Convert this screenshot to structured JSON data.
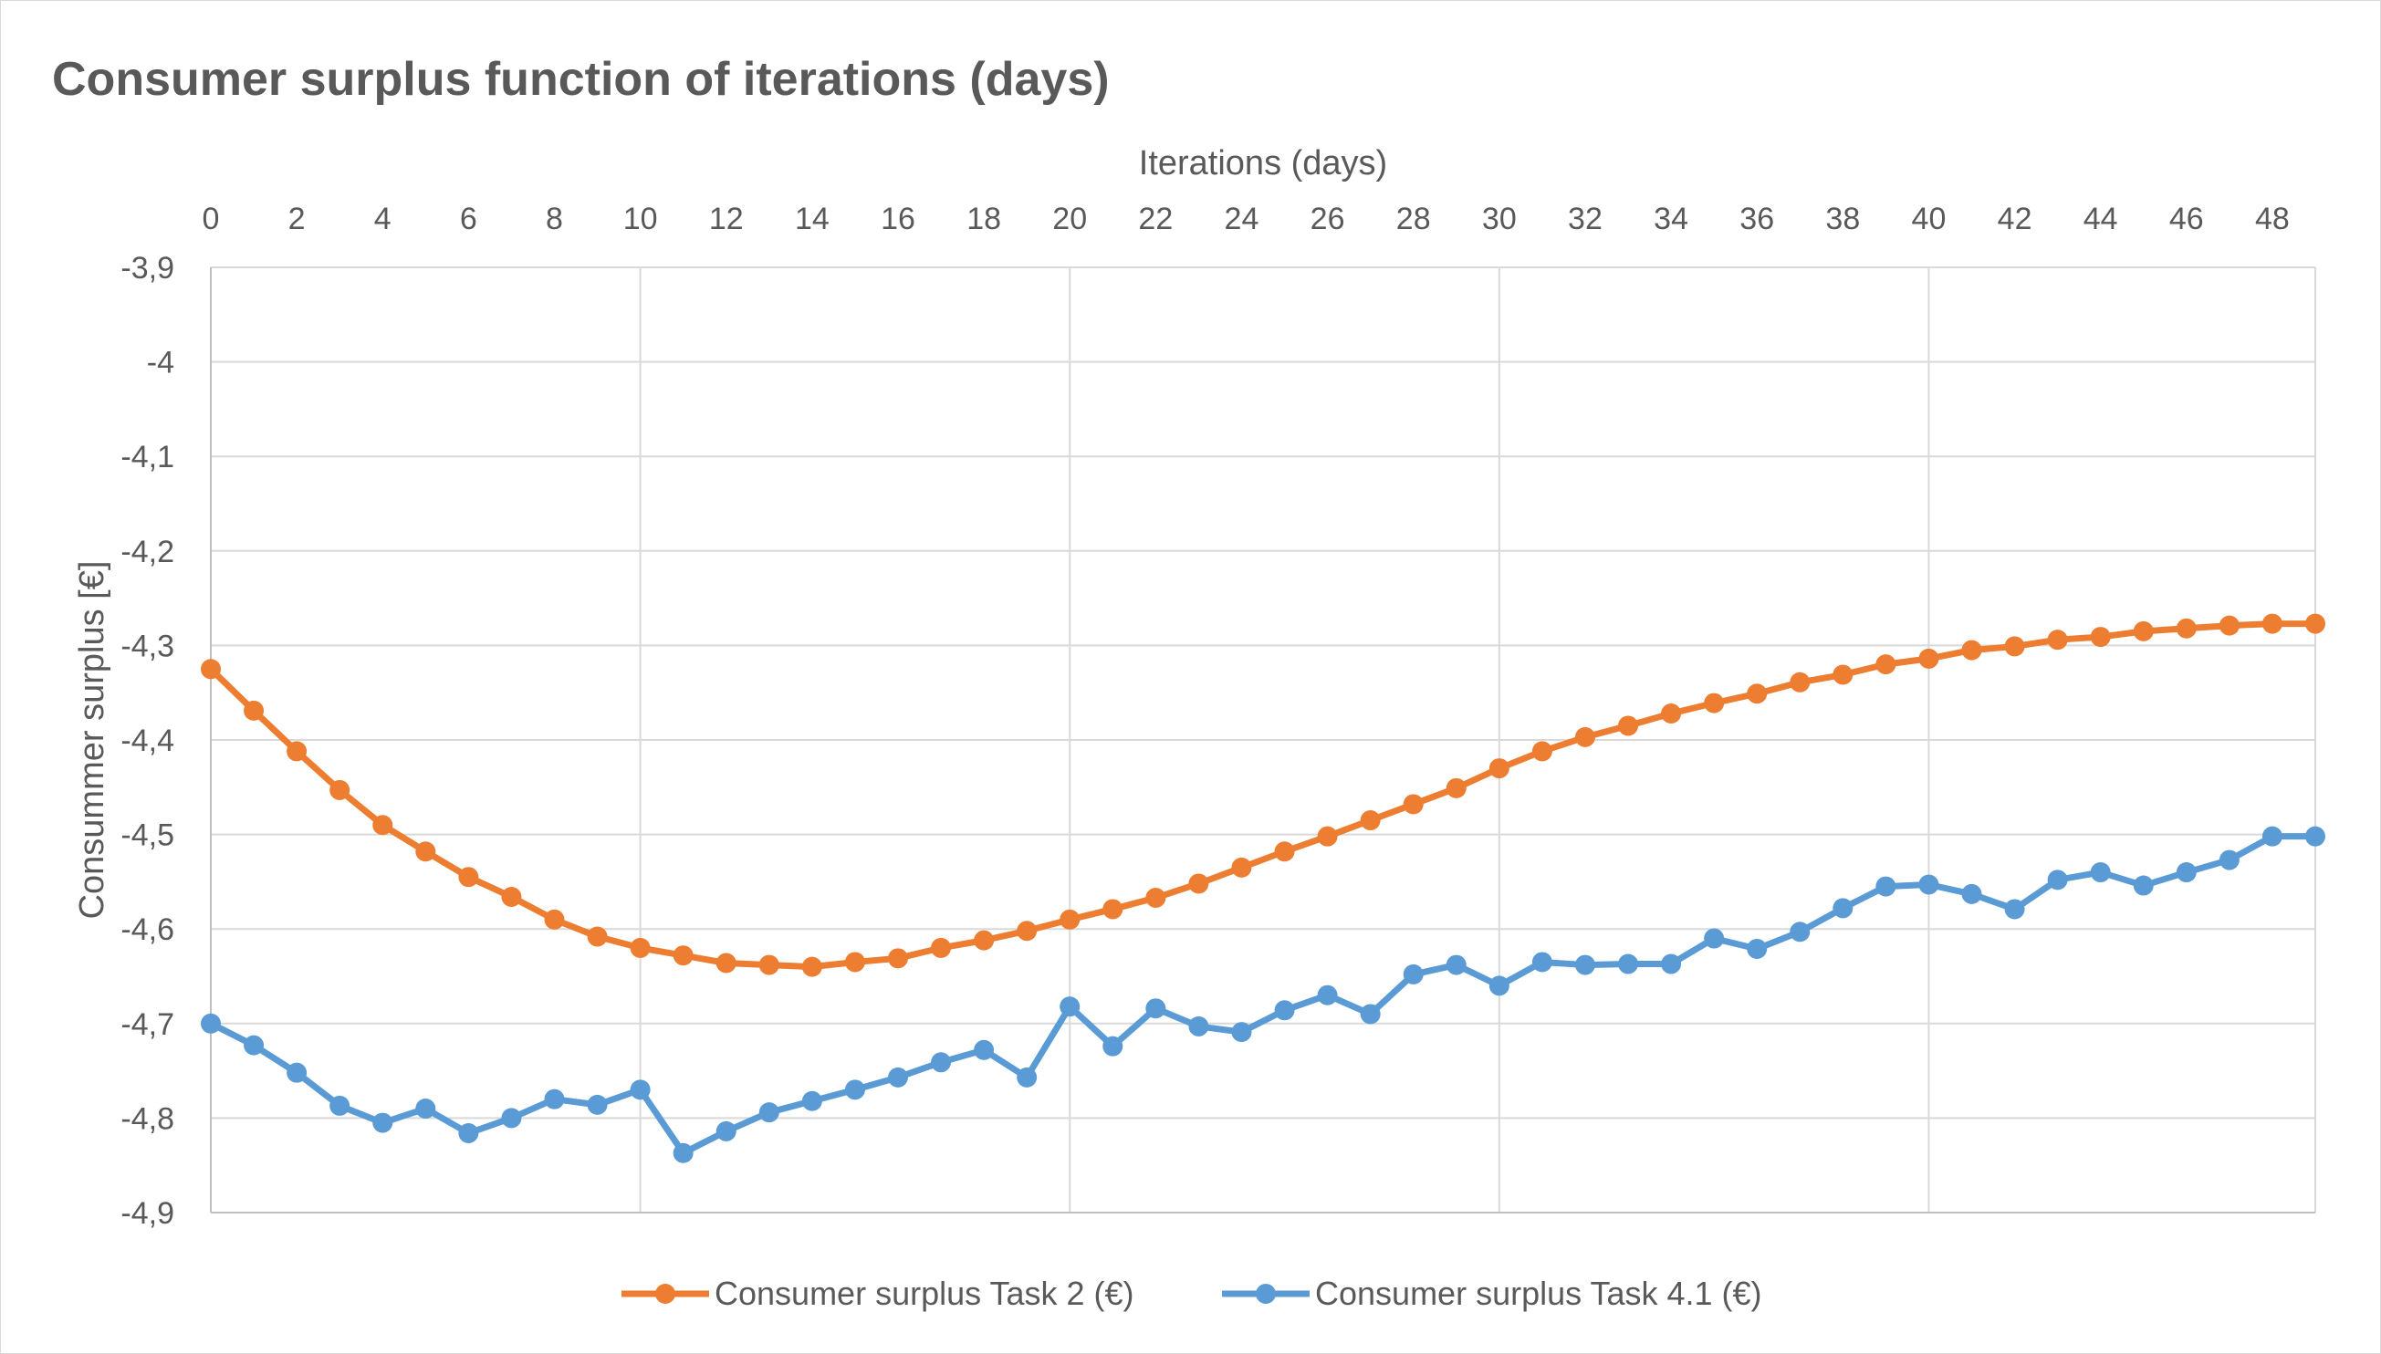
{
  "chart_data": {
    "type": "line",
    "title": "Consumer surplus function of iterations (days)",
    "xlabel": "Iterations (days)",
    "ylabel": "Consummer surplus [€]",
    "x_axis_position": "top",
    "xlim": [
      0,
      49
    ],
    "x_ticks": [
      0,
      2,
      4,
      6,
      8,
      10,
      12,
      14,
      16,
      18,
      20,
      22,
      24,
      26,
      28,
      30,
      32,
      34,
      36,
      38,
      40,
      42,
      44,
      46,
      48
    ],
    "x_major_gridlines": [
      10,
      20,
      30,
      40
    ],
    "ylim": [
      -4.9,
      -3.9
    ],
    "y_ticks": [
      -3.9,
      -4,
      -4.1,
      -4.2,
      -4.3,
      -4.4,
      -4.5,
      -4.6,
      -4.7,
      -4.8,
      -4.9
    ],
    "y_tick_labels": [
      "-3,9",
      "-4",
      "-4,1",
      "-4,2",
      "-4,3",
      "-4,4",
      "-4,5",
      "-4,6",
      "-4,7",
      "-4,8",
      "-4,9"
    ],
    "grid": true,
    "legend_position": "bottom",
    "x": [
      0,
      1,
      2,
      3,
      4,
      5,
      6,
      7,
      8,
      9,
      10,
      11,
      12,
      13,
      14,
      15,
      16,
      17,
      18,
      19,
      20,
      21,
      22,
      23,
      24,
      25,
      26,
      27,
      28,
      29,
      30,
      31,
      32,
      33,
      34,
      35,
      36,
      37,
      38,
      39,
      40,
      41,
      42,
      43,
      44,
      45,
      46,
      47,
      48,
      49
    ],
    "series": [
      {
        "name": "Consumer surplus Task 2 (€)",
        "color": "#ED7D31",
        "values": [
          -4.325,
          -4.369,
          -4.412,
          -4.453,
          -4.49,
          -4.518,
          -4.545,
          -4.566,
          -4.59,
          -4.608,
          -4.62,
          -4.628,
          -4.636,
          -4.638,
          -4.64,
          -4.635,
          -4.631,
          -4.62,
          -4.612,
          -4.602,
          -4.59,
          -4.579,
          -4.567,
          -4.552,
          -4.535,
          -4.518,
          -4.502,
          -4.485,
          -4.468,
          -4.451,
          -4.43,
          -4.412,
          -4.397,
          -4.385,
          -4.372,
          -4.361,
          -4.351,
          -4.339,
          -4.331,
          -4.32,
          -4.314,
          -4.305,
          -4.301,
          -4.294,
          -4.291,
          -4.285,
          -4.282,
          -4.279,
          -4.277,
          -4.277
        ]
      },
      {
        "name": "Consumer surplus Task 4.1 (€)",
        "color": "#5B9BD5",
        "values": [
          -4.7,
          -4.723,
          -4.752,
          -4.787,
          -4.805,
          -4.79,
          -4.816,
          -4.8,
          -4.78,
          -4.786,
          -4.77,
          -4.837,
          -4.814,
          -4.794,
          -4.782,
          -4.77,
          -4.757,
          -4.741,
          -4.728,
          -4.757,
          -4.682,
          -4.724,
          -4.684,
          -4.703,
          -4.709,
          -4.686,
          -4.67,
          -4.69,
          -4.648,
          -4.638,
          -4.66,
          -4.635,
          -4.638,
          -4.637,
          -4.637,
          -4.61,
          -4.621,
          -4.603,
          -4.578,
          -4.555,
          -4.553,
          -4.563,
          -4.579,
          -4.548,
          -4.54,
          -4.554,
          -4.54,
          -4.527,
          -4.502,
          -4.502
        ]
      }
    ]
  }
}
